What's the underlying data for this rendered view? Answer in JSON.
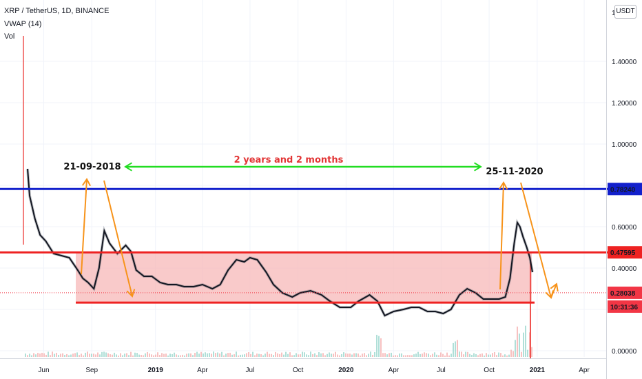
{
  "header": {
    "symbol_line": "XRP / TetherUS, 1D, BINANCE",
    "indicator": "VWAP (14)",
    "volume": "Vol"
  },
  "currency_button": "USDT",
  "colors": {
    "price_line": "#131722",
    "resistance": "#1220cc",
    "support": "#ee2222",
    "zone_fill": "#f7b8b8",
    "arrow": "#f7931a",
    "span_arrow": "#22dd22",
    "span_text": "#e23535",
    "current_price": "#f23645"
  },
  "annotations": {
    "span_text": "2 years and 2 months",
    "date_left": "21-09-2018",
    "date_right": "25-11-2020"
  },
  "price_tags": [
    {
      "name": "resistance-price-tag",
      "label": "0.78240",
      "value": 0.7824,
      "color": "#1220cc"
    },
    {
      "name": "zone-top-price-tag",
      "label": "0.47595",
      "value": 0.47595,
      "color": "#ee2222"
    },
    {
      "name": "current-price-tag",
      "label": "0.28038",
      "value": 0.28038,
      "color": "#f23645"
    },
    {
      "name": "countdown-tag",
      "label": "10:31:36",
      "value": 0.2328,
      "color": "#f23645"
    }
  ],
  "chart_data": {
    "type": "line",
    "title": "XRP / TetherUS, 1D, BINANCE",
    "y_ticks": [
      "1.40000",
      "1.20000",
      "1.00000",
      "0.60000",
      "0.40000",
      "0.00000"
    ],
    "y_tick_values": [
      1.4,
      1.2,
      1.0,
      0.6,
      0.4,
      0.0
    ],
    "x_ticks": [
      "Jun",
      "Sep",
      "2019",
      "Apr",
      "Jul",
      "Oct",
      "2020",
      "Apr",
      "Jul",
      "Oct",
      "2021",
      "Apr"
    ],
    "x_tick_dates": [
      "2018-06-01",
      "2018-09-01",
      "2019-01-01",
      "2019-04-01",
      "2019-07-01",
      "2019-10-01",
      "2020-01-01",
      "2020-04-01",
      "2020-07-01",
      "2020-10-01",
      "2021-01-01",
      "2021-04-01"
    ],
    "series": [
      {
        "name": "VWAP (14)",
        "x": [
          "2018-05-01",
          "2018-05-05",
          "2018-05-15",
          "2018-05-25",
          "2018-06-05",
          "2018-06-20",
          "2018-07-05",
          "2018-07-20",
          "2018-08-05",
          "2018-08-15",
          "2018-08-25",
          "2018-09-05",
          "2018-09-15",
          "2018-09-25",
          "2018-10-05",
          "2018-10-20",
          "2018-11-05",
          "2018-11-15",
          "2018-11-25",
          "2018-12-10",
          "2018-12-25",
          "2019-01-10",
          "2019-01-25",
          "2019-02-10",
          "2019-02-25",
          "2019-03-15",
          "2019-04-01",
          "2019-04-20",
          "2019-05-05",
          "2019-05-20",
          "2019-06-05",
          "2019-06-20",
          "2019-07-01",
          "2019-07-15",
          "2019-08-01",
          "2019-08-15",
          "2019-09-01",
          "2019-09-20",
          "2019-10-05",
          "2019-10-25",
          "2019-11-15",
          "2019-12-01",
          "2019-12-20",
          "2020-01-10",
          "2020-01-25",
          "2020-02-15",
          "2020-03-01",
          "2020-03-15",
          "2020-04-01",
          "2020-04-20",
          "2020-05-05",
          "2020-05-20",
          "2020-06-05",
          "2020-06-20",
          "2020-07-05",
          "2020-07-20",
          "2020-08-05",
          "2020-08-20",
          "2020-09-05",
          "2020-09-20",
          "2020-10-05",
          "2020-10-20",
          "2020-11-01",
          "2020-11-10",
          "2020-11-18",
          "2020-11-24",
          "2020-11-29",
          "2020-12-05",
          "2020-12-12",
          "2020-12-18",
          "2020-12-23"
        ],
        "y": [
          0.88,
          0.75,
          0.64,
          0.56,
          0.53,
          0.47,
          0.46,
          0.45,
          0.39,
          0.35,
          0.33,
          0.3,
          0.4,
          0.58,
          0.52,
          0.47,
          0.51,
          0.48,
          0.39,
          0.36,
          0.36,
          0.33,
          0.32,
          0.32,
          0.31,
          0.31,
          0.32,
          0.3,
          0.32,
          0.39,
          0.44,
          0.43,
          0.45,
          0.44,
          0.38,
          0.32,
          0.28,
          0.26,
          0.28,
          0.29,
          0.27,
          0.24,
          0.21,
          0.21,
          0.24,
          0.27,
          0.24,
          0.17,
          0.19,
          0.2,
          0.21,
          0.21,
          0.19,
          0.19,
          0.18,
          0.2,
          0.27,
          0.3,
          0.28,
          0.25,
          0.25,
          0.25,
          0.26,
          0.35,
          0.52,
          0.62,
          0.6,
          0.55,
          0.5,
          0.45,
          0.38
        ]
      }
    ],
    "levels": {
      "resistance": 0.7824,
      "zone_top": 0.47595,
      "support": 0.2328,
      "current": 0.28038
    },
    "ylim": [
      -0.02,
      1.56
    ],
    "xlim": [
      "2018-04-16",
      "2021-05-10"
    ],
    "grid": true,
    "legend": "top-left"
  }
}
